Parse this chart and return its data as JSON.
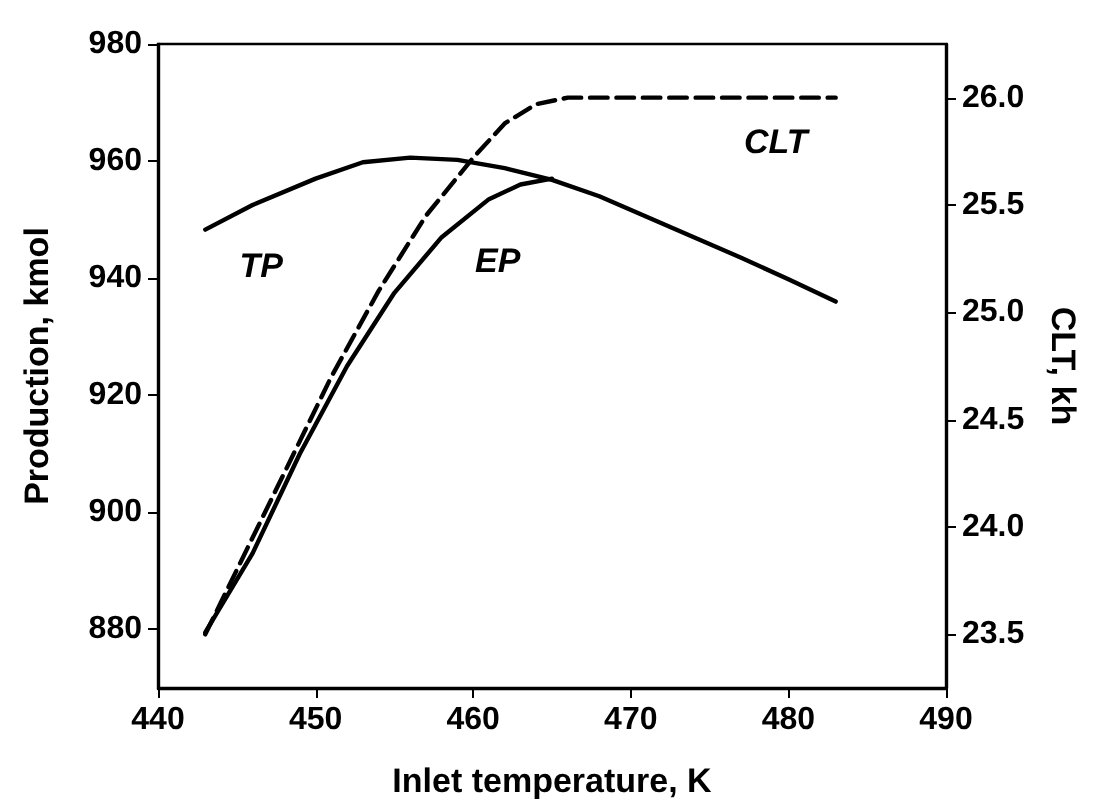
{
  "chart_data": {
    "type": "line",
    "xlabel": "Inlet temperature, K",
    "ylabel": "Production, kmol",
    "y2label": "CLT, kh",
    "xlim": [
      440,
      490
    ],
    "xticks": [
      440,
      450,
      460,
      470,
      480,
      490
    ],
    "ylim": [
      870,
      980
    ],
    "yticks": [
      880,
      900,
      920,
      940,
      960,
      980
    ],
    "y2lim": [
      23.25,
      26.25
    ],
    "y2ticks": [
      23.5,
      {
        "value": 24,
        "label": "24.0"
      },
      24.5,
      {
        "value": 25,
        "label": "25.0"
      },
      25.5,
      {
        "value": 26,
        "label": "26.0"
      }
    ],
    "grid": false,
    "legend": false,
    "marker": "none",
    "series": [
      {
        "name": "TP",
        "color": "#000000",
        "line_style": "solid",
        "x": [
          443,
          446,
          450,
          453,
          456,
          459,
          462,
          465,
          468,
          471,
          474,
          477,
          480,
          483
        ],
        "values": [
          948.3,
          952.5,
          957,
          959.8,
          960.6,
          960.2,
          958.8,
          956.8,
          954,
          950.5,
          947,
          943.5,
          939.8,
          936
        ]
      },
      {
        "name": "EP",
        "color": "#000000",
        "line_style": "solid",
        "x": [
          443,
          446,
          449,
          452,
          455,
          458,
          461,
          463,
          465
        ],
        "values": [
          879.5,
          893,
          910,
          925,
          937.5,
          947,
          953.5,
          956,
          957
        ]
      },
      {
        "name": "CLT",
        "color": "#000000",
        "line_style": "dashed",
        "axis": "y2",
        "x": [
          443,
          446,
          449,
          451,
          454,
          457,
          460,
          462,
          464,
          466,
          483
        ],
        "values": [
          23.5,
          23.95,
          24.4,
          24.7,
          25.1,
          25.45,
          25.72,
          25.88,
          25.97,
          26.0,
          26.0
        ]
      }
    ]
  }
}
